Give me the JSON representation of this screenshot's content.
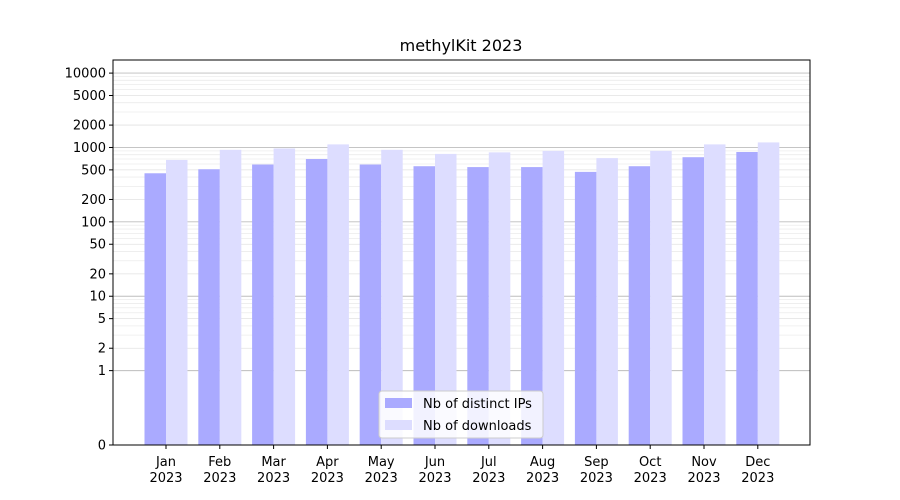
{
  "chart_data": {
    "type": "bar",
    "title": "methylKit 2023",
    "xlabel": "",
    "ylabel": "",
    "y_scale": "symlog",
    "ylim": [
      0,
      15000
    ],
    "y_ticks": [
      0,
      1,
      2,
      5,
      10,
      20,
      50,
      100,
      200,
      500,
      1000,
      2000,
      5000,
      10000
    ],
    "grid": true,
    "legend_position": "lower-center",
    "categories": [
      "Jan\n2023",
      "Feb\n2023",
      "Mar\n2023",
      "Apr\n2023",
      "May\n2023",
      "Jun\n2023",
      "Jul\n2023",
      "Aug\n2023",
      "Sep\n2023",
      "Oct\n2023",
      "Nov\n2023",
      "Dec\n2023"
    ],
    "series": [
      {
        "name": "Nb of distinct IPs",
        "color": "#aaaaff",
        "values": [
          450,
          510,
          590,
          700,
          590,
          560,
          545,
          545,
          470,
          560,
          740,
          870
        ]
      },
      {
        "name": "Nb of downloads",
        "color": "#ddddff",
        "values": [
          680,
          930,
          970,
          1100,
          930,
          820,
          860,
          900,
          720,
          900,
          1100,
          1170
        ]
      }
    ]
  }
}
